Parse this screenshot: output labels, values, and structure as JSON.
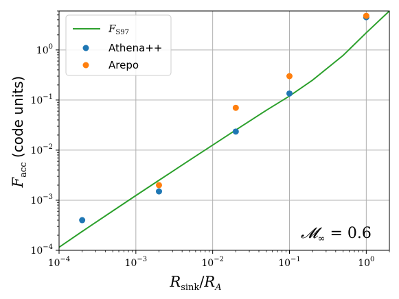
{
  "chart_data": {
    "type": "scatter",
    "xscale": "log",
    "yscale": "log",
    "xlim": [
      0.0001,
      2.0
    ],
    "ylim": [
      0.0001,
      6.0
    ],
    "grid": true,
    "legend_position": "top-left",
    "xlabel": "R_sink / R_A",
    "ylabel": "F_acc (code units)",
    "ylabel_unit": "(code units)",
    "xticks": [
      {
        "value": 0.0001,
        "base": "10",
        "exp": "−4"
      },
      {
        "value": 0.001,
        "base": "10",
        "exp": "−3"
      },
      {
        "value": 0.01,
        "base": "10",
        "exp": "−2"
      },
      {
        "value": 0.1,
        "base": "10",
        "exp": "−1"
      },
      {
        "value": 1,
        "base": "10",
        "exp": "0"
      }
    ],
    "yticks": [
      {
        "value": 0.0001,
        "base": "10",
        "exp": "−4"
      },
      {
        "value": 0.001,
        "base": "10",
        "exp": "−3"
      },
      {
        "value": 0.01,
        "base": "10",
        "exp": "−2"
      },
      {
        "value": 0.1,
        "base": "10",
        "exp": "−1"
      },
      {
        "value": 1,
        "base": "10",
        "exp": "0"
      }
    ],
    "annotation": "𝓜∞ = 0.6",
    "series": [
      {
        "name": "F_S97",
        "kind": "line",
        "color": "#2ca02c",
        "x": [
          0.0001,
          0.0002,
          0.0005,
          0.001,
          0.002,
          0.005,
          0.01,
          0.02,
          0.05,
          0.1,
          0.2,
          0.5,
          1.0,
          2.0
        ],
        "y": [
          0.000115,
          0.000238,
          0.00061,
          0.00124,
          0.0025,
          0.0063,
          0.0126,
          0.0252,
          0.0625,
          0.12,
          0.25,
          0.78,
          2.2,
          6.0
        ]
      },
      {
        "name": "Athena++",
        "kind": "scatter",
        "color": "#1f77b4",
        "x": [
          0.0002,
          0.002,
          0.02,
          0.1,
          1.0
        ],
        "y": [
          0.0004,
          0.0015,
          0.0235,
          0.135,
          4.5
        ]
      },
      {
        "name": "Arepo",
        "kind": "scatter",
        "color": "#ff7f0e",
        "x": [
          0.002,
          0.02,
          0.1,
          1.0
        ],
        "y": [
          0.002,
          0.07,
          0.3,
          4.8
        ]
      }
    ]
  },
  "legend": {
    "line_label_main": "F",
    "line_label_sub": "S97",
    "athena_label": "Athena++",
    "arepo_label": "Arepo"
  },
  "labels": {
    "xlabel_main": "R",
    "xlabel_sub": "sink",
    "xlabel_slash": "/",
    "xlabel_main2": "R",
    "xlabel_sub2": "A",
    "ylabel_main": "F",
    "ylabel_sub": "acc",
    "ylabel_unit": "(code units)",
    "annotation_M": "𝓜",
    "annotation_sub": "∞",
    "annotation_rest": " = 0.6"
  }
}
